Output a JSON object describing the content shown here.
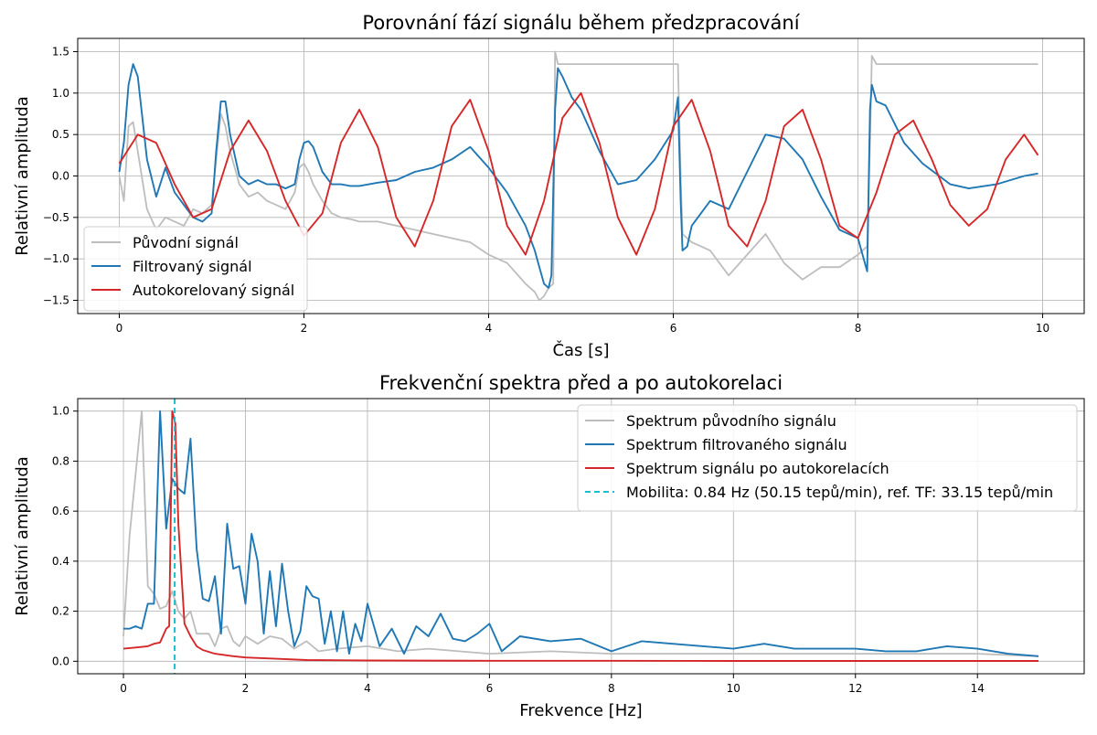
{
  "chart_data": [
    {
      "type": "line",
      "title": "Porovnání fází signálu během předzpracování",
      "xlabel": "Čas [s]",
      "ylabel": "Relativní amplituda",
      "xlim": [
        -0.45,
        10.45
      ],
      "ylim": [
        -1.66,
        1.66
      ],
      "xticks": [
        0,
        2,
        4,
        6,
        8,
        10
      ],
      "xtick_labels": [
        "0",
        "2",
        "4",
        "6",
        "8",
        "10"
      ],
      "yticks": [
        -1.5,
        -1.0,
        -0.5,
        0.0,
        0.5,
        1.0,
        1.5
      ],
      "ytick_labels": [
        "−1.5",
        "−1.0",
        "−0.5",
        "0.0",
        "0.5",
        "1.0",
        "1.5"
      ],
      "grid": true,
      "legend_position": "lower-left",
      "series": [
        {
          "name": "Původní signál",
          "color": "#bdbdbd",
          "x": [
            0,
            0.05,
            0.1,
            0.15,
            0.2,
            0.3,
            0.4,
            0.5,
            0.6,
            0.7,
            0.8,
            0.9,
            1.0,
            1.05,
            1.1,
            1.15,
            1.2,
            1.3,
            1.4,
            1.5,
            1.6,
            1.7,
            1.8,
            1.9,
            1.95,
            2.0,
            2.05,
            2.1,
            2.2,
            2.3,
            2.4,
            2.5,
            2.6,
            2.8,
            3.0,
            3.2,
            3.4,
            3.6,
            3.8,
            4.0,
            4.2,
            4.4,
            4.5,
            4.55,
            4.6,
            4.65,
            4.7,
            4.72,
            4.75,
            4.8,
            4.9,
            5.0,
            5.2,
            5.4,
            5.6,
            5.8,
            6.0,
            6.05,
            6.08,
            6.1,
            6.15,
            6.2,
            6.4,
            6.6,
            6.8,
            7.0,
            7.2,
            7.4,
            7.6,
            7.8,
            8.0,
            8.1,
            8.13,
            8.15,
            8.2,
            8.3,
            8.5,
            9.0,
            9.5,
            9.95
          ],
          "y": [
            0.0,
            -0.3,
            0.6,
            0.65,
            0.3,
            -0.4,
            -0.65,
            -0.5,
            -0.55,
            -0.6,
            -0.4,
            -0.45,
            -0.35,
            0.2,
            0.75,
            0.6,
            0.3,
            -0.1,
            -0.25,
            -0.2,
            -0.3,
            -0.35,
            -0.4,
            -0.2,
            0.1,
            0.15,
            0.05,
            -0.1,
            -0.3,
            -0.45,
            -0.5,
            -0.52,
            -0.55,
            -0.55,
            -0.6,
            -0.65,
            -0.7,
            -0.75,
            -0.8,
            -0.95,
            -1.05,
            -1.3,
            -1.4,
            -1.5,
            -1.45,
            -1.35,
            -1.3,
            1.5,
            1.35,
            1.35,
            1.35,
            1.35,
            1.35,
            1.35,
            1.35,
            1.35,
            1.35,
            1.35,
            0.0,
            -0.7,
            -0.75,
            -0.8,
            -0.9,
            -1.2,
            -0.95,
            -0.7,
            -1.05,
            -1.25,
            -1.1,
            -1.1,
            -0.95,
            -0.85,
            0.4,
            1.45,
            1.35,
            1.35,
            1.35,
            1.35,
            1.35,
            1.35
          ]
        },
        {
          "name": "Filtrovaný signál",
          "color": "#1f77b4",
          "x": [
            0,
            0.05,
            0.1,
            0.15,
            0.2,
            0.3,
            0.4,
            0.5,
            0.6,
            0.7,
            0.8,
            0.9,
            1.0,
            1.05,
            1.1,
            1.15,
            1.2,
            1.3,
            1.4,
            1.5,
            1.6,
            1.7,
            1.8,
            1.9,
            1.95,
            2.0,
            2.05,
            2.1,
            2.2,
            2.3,
            2.4,
            2.5,
            2.6,
            2.8,
            3.0,
            3.2,
            3.4,
            3.6,
            3.8,
            4.0,
            4.2,
            4.4,
            4.5,
            4.55,
            4.6,
            4.65,
            4.68,
            4.72,
            4.75,
            4.8,
            4.9,
            5.0,
            5.2,
            5.4,
            5.6,
            5.8,
            6.0,
            6.05,
            6.08,
            6.1,
            6.15,
            6.2,
            6.4,
            6.6,
            6.8,
            7.0,
            7.2,
            7.4,
            7.6,
            7.8,
            8.0,
            8.1,
            8.13,
            8.15,
            8.2,
            8.3,
            8.5,
            8.7,
            9.0,
            9.2,
            9.5,
            9.8,
            9.95
          ],
          "y": [
            0.05,
            0.4,
            1.1,
            1.35,
            1.2,
            0.2,
            -0.25,
            0.1,
            -0.2,
            -0.35,
            -0.5,
            -0.55,
            -0.45,
            0.3,
            0.9,
            0.9,
            0.5,
            0.0,
            -0.1,
            -0.05,
            -0.1,
            -0.1,
            -0.15,
            -0.1,
            0.2,
            0.4,
            0.42,
            0.35,
            0.05,
            -0.1,
            -0.1,
            -0.12,
            -0.12,
            -0.08,
            -0.05,
            0.05,
            0.1,
            0.2,
            0.35,
            0.1,
            -0.2,
            -0.6,
            -0.9,
            -1.1,
            -1.3,
            -1.35,
            -1.2,
            0.8,
            1.3,
            1.2,
            0.95,
            0.8,
            0.3,
            -0.1,
            -0.05,
            0.2,
            0.55,
            0.95,
            -0.3,
            -0.9,
            -0.85,
            -0.6,
            -0.3,
            -0.4,
            0.05,
            0.5,
            0.45,
            0.2,
            -0.25,
            -0.65,
            -0.75,
            -1.15,
            0.8,
            1.1,
            0.9,
            0.85,
            0.4,
            0.15,
            -0.1,
            -0.15,
            -0.1,
            0.0,
            0.03
          ]
        },
        {
          "name": "Autokorelovaný signál",
          "color": "#d62728",
          "x": [
            0,
            0.2,
            0.4,
            0.6,
            0.8,
            1.0,
            1.2,
            1.4,
            1.6,
            1.8,
            2.0,
            2.2,
            2.4,
            2.6,
            2.8,
            3.0,
            3.2,
            3.4,
            3.6,
            3.8,
            4.0,
            4.2,
            4.4,
            4.6,
            4.8,
            5.0,
            5.2,
            5.4,
            5.6,
            5.8,
            6.0,
            6.2,
            6.4,
            6.6,
            6.8,
            7.0,
            7.2,
            7.4,
            7.6,
            7.8,
            8.0,
            8.2,
            8.4,
            8.6,
            8.8,
            9.0,
            9.2,
            9.4,
            9.6,
            9.8,
            9.95
          ],
          "y": [
            0.15,
            0.5,
            0.4,
            -0.1,
            -0.5,
            -0.4,
            0.3,
            0.67,
            0.3,
            -0.3,
            -0.72,
            -0.45,
            0.4,
            0.8,
            0.35,
            -0.5,
            -0.85,
            -0.3,
            0.6,
            0.92,
            0.3,
            -0.6,
            -0.95,
            -0.3,
            0.7,
            1.0,
            0.4,
            -0.5,
            -0.95,
            -0.4,
            0.6,
            0.92,
            0.3,
            -0.6,
            -0.85,
            -0.3,
            0.6,
            0.8,
            0.2,
            -0.6,
            -0.75,
            -0.2,
            0.5,
            0.67,
            0.2,
            -0.35,
            -0.6,
            -0.4,
            0.2,
            0.5,
            0.25
          ]
        }
      ]
    },
    {
      "type": "line",
      "title": "Frekvenční spektra před a po autokorelaci",
      "xlabel": "Frekvence [Hz]",
      "ylabel": "Relativní amplituda",
      "xlim": [
        -0.75,
        15.75
      ],
      "ylim": [
        -0.05,
        1.05
      ],
      "xticks": [
        0,
        2,
        4,
        6,
        8,
        10,
        12,
        14
      ],
      "xtick_labels": [
        "0",
        "2",
        "4",
        "6",
        "8",
        "10",
        "12",
        "14"
      ],
      "yticks": [
        0.0,
        0.2,
        0.4,
        0.6,
        0.8,
        1.0
      ],
      "ytick_labels": [
        "0.0",
        "0.2",
        "0.4",
        "0.6",
        "0.8",
        "1.0"
      ],
      "grid": true,
      "legend_position": "upper-right",
      "series": [
        {
          "name": "Spektrum původního signálu",
          "color": "#bdbdbd",
          "x": [
            0,
            0.1,
            0.2,
            0.3,
            0.4,
            0.5,
            0.6,
            0.7,
            0.8,
            0.9,
            1.0,
            1.1,
            1.2,
            1.3,
            1.4,
            1.5,
            1.6,
            1.7,
            1.8,
            1.9,
            2.0,
            2.2,
            2.4,
            2.6,
            2.8,
            3.0,
            3.2,
            3.5,
            4.0,
            4.5,
            5.0,
            5.5,
            6.0,
            7.0,
            8.0,
            9.0,
            10.0,
            11.0,
            12.0,
            13.0,
            14.0,
            15.0
          ],
          "y": [
            0.1,
            0.5,
            0.75,
            1.0,
            0.3,
            0.27,
            0.21,
            0.22,
            0.28,
            0.2,
            0.17,
            0.2,
            0.11,
            0.11,
            0.11,
            0.06,
            0.13,
            0.14,
            0.08,
            0.06,
            0.1,
            0.07,
            0.1,
            0.09,
            0.05,
            0.08,
            0.04,
            0.05,
            0.06,
            0.04,
            0.05,
            0.04,
            0.03,
            0.04,
            0.03,
            0.03,
            0.03,
            0.03,
            0.03,
            0.03,
            0.03,
            0.02
          ]
        },
        {
          "name": "Spektrum filtrovaného signálu",
          "color": "#1f77b4",
          "x": [
            0,
            0.1,
            0.2,
            0.3,
            0.4,
            0.5,
            0.6,
            0.7,
            0.8,
            0.9,
            1.0,
            1.1,
            1.2,
            1.3,
            1.4,
            1.5,
            1.6,
            1.7,
            1.8,
            1.9,
            2.0,
            2.1,
            2.2,
            2.3,
            2.4,
            2.5,
            2.6,
            2.7,
            2.8,
            2.9,
            3.0,
            3.1,
            3.2,
            3.3,
            3.4,
            3.5,
            3.6,
            3.7,
            3.8,
            3.9,
            4.0,
            4.2,
            4.4,
            4.6,
            4.8,
            5.0,
            5.2,
            5.4,
            5.6,
            5.8,
            6.0,
            6.2,
            6.5,
            7.0,
            7.5,
            8.0,
            8.5,
            9.0,
            9.5,
            10.0,
            10.5,
            11.0,
            11.5,
            12.0,
            12.5,
            13.0,
            13.5,
            14.0,
            14.5,
            15.0
          ],
          "y": [
            0.13,
            0.13,
            0.14,
            0.13,
            0.23,
            0.23,
            1.0,
            0.53,
            0.73,
            0.69,
            0.67,
            0.89,
            0.45,
            0.25,
            0.24,
            0.34,
            0.11,
            0.55,
            0.37,
            0.38,
            0.23,
            0.51,
            0.4,
            0.11,
            0.36,
            0.14,
            0.39,
            0.2,
            0.06,
            0.12,
            0.3,
            0.26,
            0.25,
            0.07,
            0.2,
            0.04,
            0.2,
            0.03,
            0.15,
            0.08,
            0.23,
            0.06,
            0.13,
            0.03,
            0.14,
            0.1,
            0.19,
            0.09,
            0.08,
            0.11,
            0.15,
            0.04,
            0.1,
            0.08,
            0.09,
            0.04,
            0.08,
            0.07,
            0.06,
            0.05,
            0.07,
            0.05,
            0.05,
            0.05,
            0.04,
            0.04,
            0.06,
            0.05,
            0.03,
            0.02
          ]
        },
        {
          "name": "Spektrum signálu po autokorelacích",
          "color": "#d62728",
          "x": [
            0,
            0.2,
            0.4,
            0.5,
            0.6,
            0.7,
            0.75,
            0.8,
            0.85,
            0.9,
            1.0,
            1.1,
            1.2,
            1.3,
            1.5,
            1.8,
            2.0,
            2.5,
            3.0,
            4.0,
            6.0,
            8.0,
            10.0,
            12.0,
            14.0,
            15.0
          ],
          "y": [
            0.05,
            0.055,
            0.06,
            0.07,
            0.075,
            0.13,
            0.14,
            1.0,
            0.95,
            0.55,
            0.15,
            0.1,
            0.06,
            0.045,
            0.03,
            0.02,
            0.015,
            0.01,
            0.005,
            0.003,
            0.002,
            0.002,
            0.001,
            0.001,
            0.001,
            0.001
          ]
        },
        {
          "name": "Mobilita: 0.84 Hz (50.15 tepů/min), ref. TF: 33.15 tepů/min",
          "color": "#17becf",
          "style": "dashed-vertical",
          "x_value": 0.84
        }
      ]
    }
  ]
}
